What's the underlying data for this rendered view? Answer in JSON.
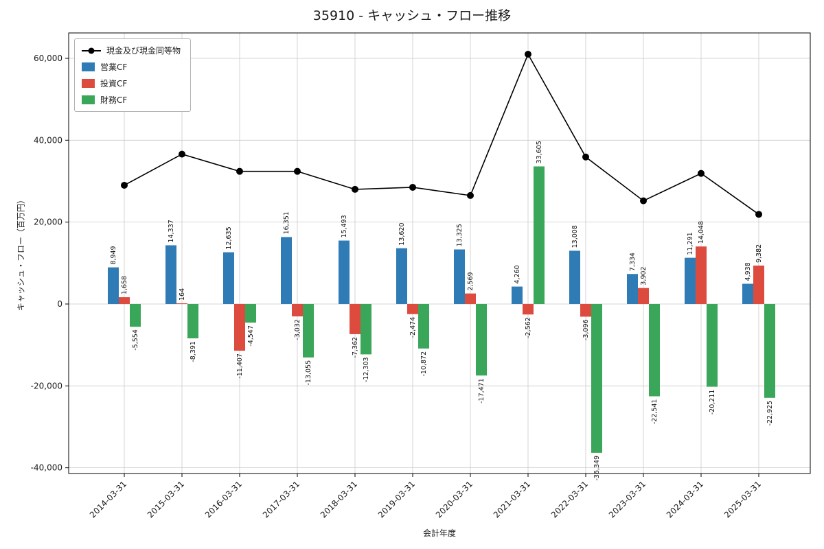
{
  "title": "35910 - キャッシュ・フロー推移",
  "chart_data": {
    "type": "bar",
    "title": "35910 - キャッシュ・フロー推移",
    "xlabel": "会計年度",
    "ylabel": "キャッシュ・フロー（百万円）",
    "categories": [
      "2014-03-31",
      "2015-03-31",
      "2016-03-31",
      "2017-03-31",
      "2018-03-31",
      "2019-03-31",
      "2020-03-31",
      "2021-03-31",
      "2022-03-31",
      "2023-03-31",
      "2024-03-31",
      "2025-03-31"
    ],
    "series": [
      {
        "name": "現金及び現金同等物",
        "type": "line",
        "color": "#000000",
        "values": [
          29000,
          36600,
          32400,
          32400,
          28000,
          28500,
          26500,
          61000,
          35900,
          25200,
          31900,
          21900
        ]
      },
      {
        "name": "営業CF",
        "type": "bar",
        "color": "#2f7bb6",
        "values": [
          8949,
          14337,
          12635,
          16351,
          15493,
          13620,
          13325,
          4260,
          13008,
          7334,
          11291,
          4938
        ]
      },
      {
        "name": "投資CF",
        "type": "bar",
        "color": "#dd4b3e",
        "values": [
          1658,
          164,
          -11407,
          -3032,
          -7362,
          -2474,
          2569,
          -2562,
          -3096,
          3902,
          14048,
          9382
        ]
      },
      {
        "name": "財務CF",
        "type": "bar",
        "color": "#3aa65a",
        "values": [
          -5554,
          -8391,
          -4547,
          -13055,
          -12303,
          -10872,
          -17471,
          33605,
          -36349,
          -22541,
          -20211,
          -22925
        ]
      }
    ],
    "ylim": [
      -41400,
      66200
    ],
    "yticks": [
      -40000,
      -20000,
      0,
      20000,
      40000,
      60000
    ],
    "grid": true,
    "legend_position": "upper-left"
  }
}
